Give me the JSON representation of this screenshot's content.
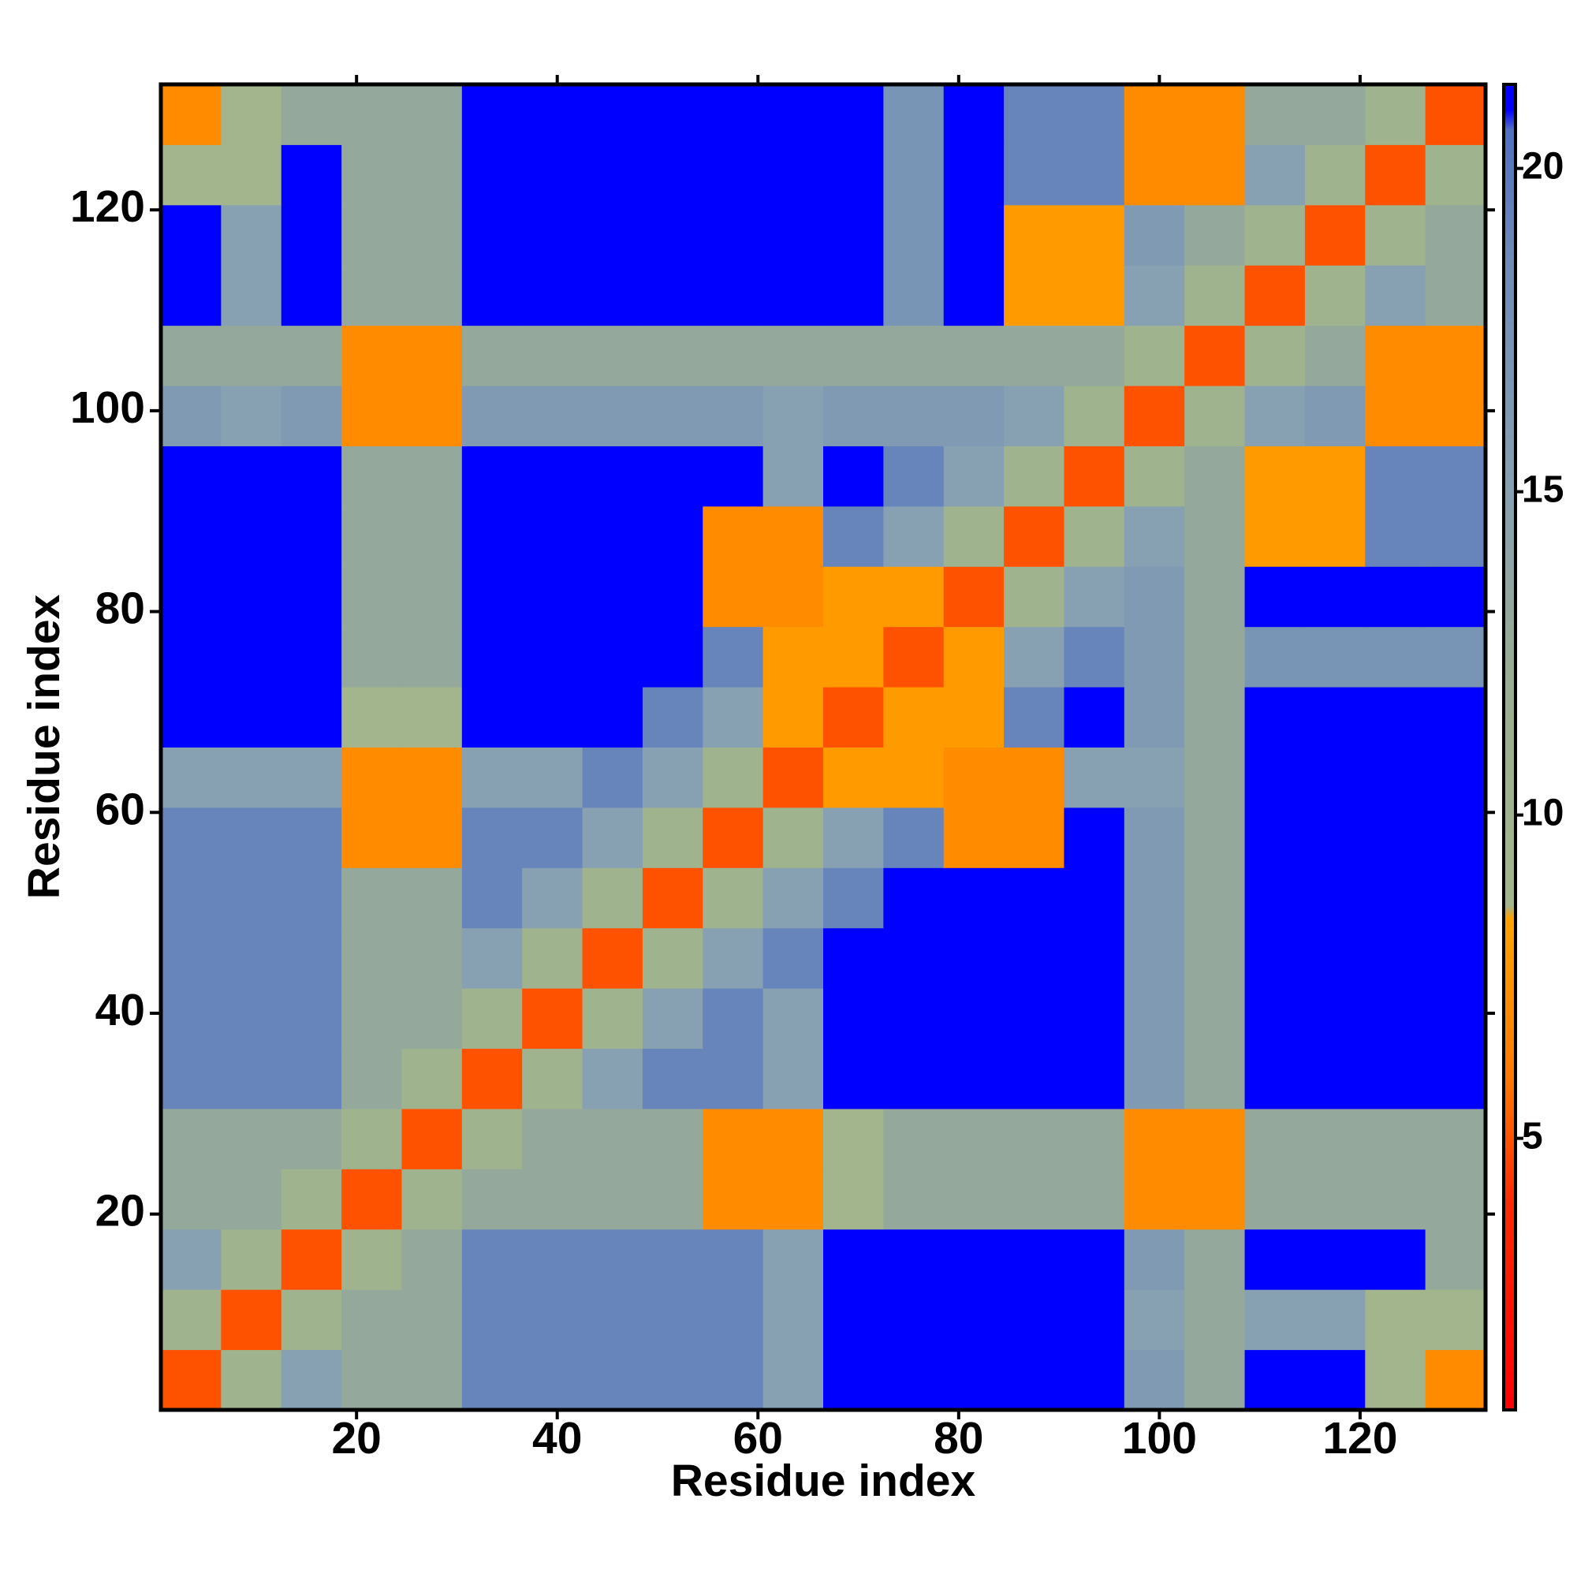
{
  "chart_data": {
    "type": "heatmap",
    "xlabel": "Residue index",
    "ylabel": "Residue index",
    "xbins": [
      0.5,
      6.5,
      12.5,
      18.5,
      24.5,
      30.5,
      36.5,
      42.5,
      48.5,
      54.5,
      60.5,
      66.5,
      72.5,
      78.5,
      84.5,
      90.5,
      96.5,
      102.5,
      108.5,
      114.5,
      120.5,
      126.5,
      132.5
    ],
    "ybins": [
      0.5,
      6.5,
      12.5,
      18.5,
      24.5,
      30.5,
      36.5,
      42.5,
      48.5,
      54.5,
      60.5,
      66.5,
      72.5,
      78.5,
      84.5,
      90.5,
      96.5,
      102.5,
      108.5,
      114.5,
      120.5,
      126.5,
      132.5
    ],
    "z": [
      [
        5,
        10,
        15,
        13,
        13,
        19,
        19,
        19,
        19,
        19,
        15,
        21,
        21,
        21,
        21,
        21,
        16,
        13,
        21,
        21,
        9,
        7
      ],
      [
        10,
        5,
        10,
        13,
        13,
        19,
        19,
        19,
        19,
        19,
        15,
        21,
        21,
        21,
        21,
        21,
        15,
        13,
        15,
        15,
        9,
        9
      ],
      [
        15,
        10,
        5,
        10,
        13,
        19,
        19,
        19,
        19,
        19,
        15,
        21,
        21,
        21,
        21,
        21,
        16,
        13,
        21,
        21,
        21,
        13
      ],
      [
        13,
        13,
        10,
        5,
        10,
        13,
        13,
        13,
        13,
        7,
        7,
        9,
        13,
        13,
        13,
        13,
        7,
        7,
        13,
        13,
        13,
        13
      ],
      [
        13,
        13,
        13,
        10,
        5,
        10,
        13,
        13,
        13,
        7,
        7,
        9,
        13,
        13,
        13,
        13,
        7,
        7,
        13,
        13,
        13,
        13
      ],
      [
        19,
        19,
        19,
        13,
        10,
        5,
        10,
        15,
        19,
        19,
        15,
        21,
        21,
        21,
        21,
        21,
        16,
        13,
        21,
        21,
        21,
        21
      ],
      [
        19,
        19,
        19,
        13,
        13,
        10,
        5,
        10,
        15,
        19,
        15,
        21,
        21,
        21,
        21,
        21,
        16,
        13,
        21,
        21,
        21,
        21
      ],
      [
        19,
        19,
        19,
        13,
        13,
        15,
        10,
        5,
        10,
        15,
        19,
        21,
        21,
        21,
        21,
        21,
        16,
        13,
        21,
        21,
        21,
        21
      ],
      [
        19,
        19,
        19,
        13,
        13,
        19,
        15,
        10,
        5,
        10,
        15,
        19,
        21,
        21,
        21,
        21,
        16,
        13,
        21,
        21,
        21,
        21
      ],
      [
        19,
        19,
        19,
        7,
        7,
        19,
        19,
        15,
        10,
        5,
        10,
        15,
        19,
        7,
        7,
        21,
        16,
        13,
        21,
        21,
        21,
        21
      ],
      [
        15,
        15,
        15,
        7,
        7,
        15,
        15,
        19,
        15,
        10,
        5,
        8,
        8,
        7,
        7,
        15,
        15,
        13,
        21,
        21,
        21,
        21
      ],
      [
        21,
        21,
        21,
        9,
        9,
        21,
        21,
        21,
        19,
        15,
        8,
        5,
        8,
        8,
        19,
        21,
        16,
        13,
        21,
        21,
        21,
        21
      ],
      [
        21,
        21,
        21,
        13,
        13,
        21,
        21,
        21,
        21,
        19,
        8,
        8,
        5,
        8,
        15,
        19,
        16,
        13,
        17,
        17,
        17,
        17
      ],
      [
        21,
        21,
        21,
        13,
        13,
        21,
        21,
        21,
        21,
        7,
        7,
        8,
        8,
        5,
        10,
        15,
        16,
        13,
        21,
        21,
        21,
        21
      ],
      [
        21,
        21,
        21,
        13,
        13,
        21,
        21,
        21,
        21,
        7,
        7,
        19,
        15,
        10,
        5,
        10,
        15,
        13,
        8,
        8,
        19,
        19
      ],
      [
        21,
        21,
        21,
        13,
        13,
        21,
        21,
        21,
        21,
        21,
        15,
        21,
        19,
        15,
        10,
        5,
        10,
        13,
        8,
        8,
        19,
        19
      ],
      [
        16,
        15,
        16,
        7,
        7,
        16,
        16,
        16,
        16,
        16,
        15,
        16,
        16,
        16,
        15,
        10,
        5,
        10,
        15,
        16,
        7,
        7
      ],
      [
        13,
        13,
        13,
        7,
        7,
        13,
        13,
        13,
        13,
        13,
        13,
        13,
        13,
        13,
        13,
        13,
        10,
        5,
        10,
        13,
        7,
        7
      ],
      [
        21,
        15,
        21,
        13,
        13,
        21,
        21,
        21,
        21,
        21,
        21,
        21,
        17,
        21,
        8,
        8,
        15,
        10,
        5,
        10,
        15,
        13
      ],
      [
        21,
        15,
        21,
        13,
        13,
        21,
        21,
        21,
        21,
        21,
        21,
        21,
        17,
        21,
        8,
        8,
        16,
        13,
        10,
        5,
        10,
        13
      ],
      [
        9,
        9,
        21,
        13,
        13,
        21,
        21,
        21,
        21,
        21,
        21,
        21,
        17,
        21,
        19,
        19,
        7,
        7,
        15,
        10,
        5,
        10
      ],
      [
        7,
        9,
        13,
        13,
        13,
        21,
        21,
        21,
        21,
        21,
        21,
        21,
        17,
        21,
        19,
        19,
        7,
        7,
        13,
        13,
        10,
        5
      ]
    ],
    "xlim": [
      0.5,
      132.5
    ],
    "ylim": [
      0.5,
      132.5
    ],
    "xticks": [
      20,
      40,
      60,
      80,
      100,
      120
    ],
    "yticks": [
      20,
      40,
      60,
      80,
      100,
      120
    ],
    "colorbar": {
      "lim": [
        0.8,
        21.3
      ],
      "ticks": [
        5,
        10,
        15,
        20
      ]
    },
    "colorscale": [
      [
        0.8,
        "#ff0000"
      ],
      [
        4,
        "#ff2a00"
      ],
      [
        6,
        "#ff7a00"
      ],
      [
        8.4,
        "#ffa200"
      ],
      [
        8.6,
        "#a3b68c"
      ],
      [
        12,
        "#9aae90"
      ],
      [
        15,
        "#87a0b2"
      ],
      [
        18.5,
        "#6f8cb8"
      ],
      [
        20.6,
        "#4f70c4"
      ],
      [
        20.9,
        "#0000ff"
      ],
      [
        21.3,
        "#0000ff"
      ]
    ]
  }
}
